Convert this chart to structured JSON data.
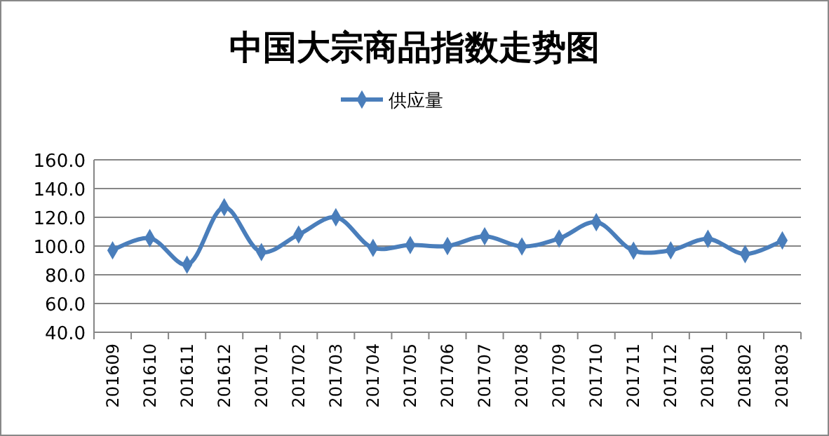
{
  "chart_data": {
    "type": "line",
    "title": "中国大宗商品指数走势图",
    "categories": [
      "201609",
      "201610",
      "201611",
      "201612",
      "201701",
      "201702",
      "201703",
      "201704",
      "201705",
      "201706",
      "201707",
      "201708",
      "201709",
      "201710",
      "201711",
      "201712",
      "201801",
      "201802",
      "201803"
    ],
    "series": [
      {
        "name": "供应量",
        "color": "#4a7ebb",
        "values": [
          97,
          105.5,
          87,
          127,
          95.8,
          108,
          120,
          98.7,
          100.7,
          100,
          106.8,
          99.7,
          105.2,
          116.6,
          96.8,
          97,
          105,
          94.4,
          103.9
        ]
      }
    ],
    "ylim": [
      40,
      160
    ],
    "yticks": [
      {
        "value": 40,
        "label": "40.0"
      },
      {
        "value": 60,
        "label": "60.0"
      },
      {
        "value": 80,
        "label": "80.0"
      },
      {
        "value": 100,
        "label": "100.0"
      },
      {
        "value": 120,
        "label": "120.0"
      },
      {
        "value": 140,
        "label": "140.0"
      },
      {
        "value": 160,
        "label": "160.0"
      }
    ],
    "grid": "y",
    "legend": "top",
    "marker": "diamond",
    "line_style": "solid"
  }
}
